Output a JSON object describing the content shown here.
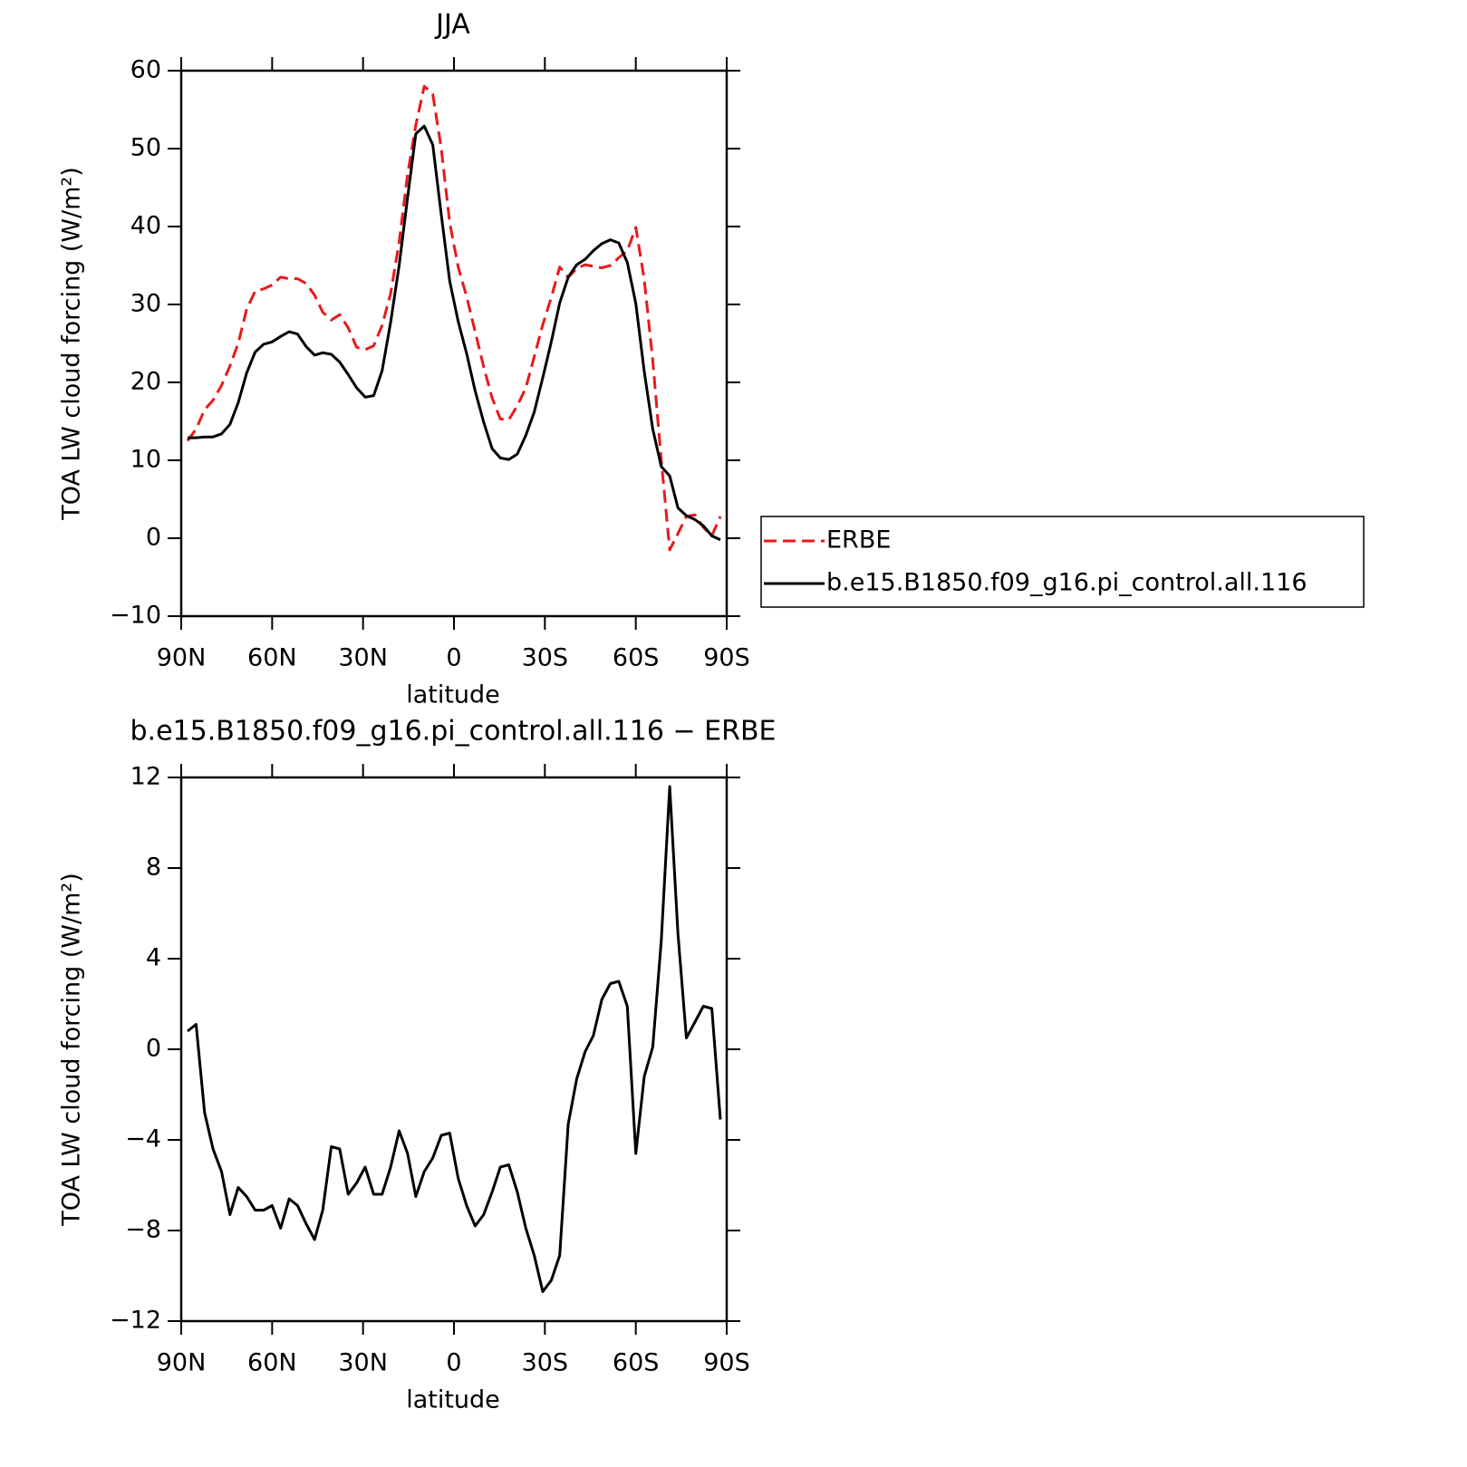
{
  "chart_data": [
    {
      "type": "line",
      "title": "JJA",
      "ylabel": "TOA LW cloud forcing (W/m²)",
      "xlabel": "latitude",
      "xlim": [
        90,
        -90
      ],
      "xticks": [
        {
          "value": 90,
          "label": "90N"
        },
        {
          "value": 60,
          "label": "60N"
        },
        {
          "value": 30,
          "label": "30N"
        },
        0,
        {
          "value": -30,
          "label": "30S"
        },
        {
          "value": -60,
          "label": "60S"
        },
        {
          "value": -90,
          "label": "90S"
        }
      ],
      "ylim": [
        -10,
        60
      ],
      "yticks": [
        {
          "value": -10,
          "label": "−10"
        },
        0,
        10,
        20,
        30,
        40,
        50,
        60
      ],
      "legend": "outside-right",
      "x": [
        87.9,
        85.1,
        82.3,
        79.5,
        76.7,
        73.9,
        71.2,
        68.4,
        65.6,
        62.8,
        60.0,
        57.2,
        54.4,
        51.6,
        48.8,
        46.0,
        43.3,
        40.5,
        37.7,
        34.9,
        32.1,
        29.3,
        26.5,
        23.7,
        20.9,
        18.1,
        15.3,
        12.6,
        9.8,
        7.0,
        4.2,
        1.4,
        -1.4,
        -4.2,
        -7.0,
        -9.8,
        -12.6,
        -15.3,
        -18.1,
        -20.9,
        -23.7,
        -26.5,
        -29.3,
        -32.1,
        -34.9,
        -37.7,
        -40.5,
        -43.3,
        -46.0,
        -48.8,
        -51.6,
        -54.4,
        -57.2,
        -60.0,
        -62.8,
        -65.6,
        -68.4,
        -71.2,
        -73.9,
        -76.7,
        -79.5,
        -82.3,
        -85.1,
        -87.9
      ],
      "series": [
        {
          "name": "ERBE",
          "color": "#e8191c",
          "dashed": true,
          "values": [
            12.5,
            14,
            16.5,
            17.7,
            19.6,
            22.1,
            25,
            29.4,
            31.7,
            32,
            32.5,
            33.5,
            33.3,
            33.3,
            32.7,
            31.2,
            29,
            28,
            28.7,
            27,
            24.5,
            24.2,
            24.7,
            27.3,
            31.4,
            38,
            46.7,
            53,
            58,
            57,
            50,
            40.5,
            34.8,
            31,
            26.5,
            22,
            18,
            15.3,
            15.2,
            17,
            19.3,
            23.3,
            27.4,
            30.9,
            34.8,
            33.5,
            34.6,
            35.1,
            34.9,
            34.7,
            35,
            36,
            36.9,
            39.9,
            33.2,
            22.8,
            10,
            -1.5,
            0.6,
            2.8,
            3,
            1.4,
            0.3,
            2.8
          ]
        },
        {
          "name": "b.e15.B1850.f09_g16.pi_control.all.116",
          "color": "#000000",
          "dashed": false,
          "values": [
            12.9,
            12.9,
            13,
            13,
            13.4,
            14.6,
            17.4,
            21.2,
            23.9,
            24.9,
            25.2,
            25.9,
            26.5,
            26.2,
            24.6,
            23.5,
            23.8,
            23.6,
            22.6,
            21,
            19.3,
            18.1,
            18.3,
            21.5,
            27.7,
            35,
            43.7,
            51.9,
            52.9,
            50.5,
            41.5,
            33,
            27.8,
            23.7,
            18.9,
            14.9,
            11.5,
            10.3,
            10.1,
            10.8,
            13.2,
            16.2,
            20.6,
            25.2,
            30.2,
            33.5,
            35.1,
            35.8,
            36.9,
            37.8,
            38.3,
            37.9,
            35.4,
            30.1,
            21.4,
            14,
            9.2,
            8,
            3.9,
            2.9,
            2.4,
            1.6,
            0.3,
            -0.2
          ]
        }
      ]
    },
    {
      "type": "line",
      "title": "b.e15.B1850.f09_g16.pi_control.all.116 − ERBE",
      "ylabel": "TOA LW cloud forcing (W/m²)",
      "xlabel": "latitude",
      "xlim": [
        90,
        -90
      ],
      "xticks": [
        {
          "value": 90,
          "label": "90N"
        },
        {
          "value": 60,
          "label": "60N"
        },
        {
          "value": 30,
          "label": "30N"
        },
        0,
        {
          "value": -30,
          "label": "30S"
        },
        {
          "value": -60,
          "label": "60S"
        },
        {
          "value": -90,
          "label": "90S"
        }
      ],
      "ylim": [
        -12,
        12
      ],
      "yticks": [
        {
          "value": -12,
          "label": "−12"
        },
        {
          "value": -8,
          "label": "−8"
        },
        {
          "value": -4,
          "label": "−4"
        },
        0,
        4,
        8,
        12
      ],
      "x": [
        87.9,
        85.1,
        82.3,
        79.5,
        76.7,
        73.9,
        71.2,
        68.4,
        65.6,
        62.8,
        60.0,
        57.2,
        54.4,
        51.6,
        48.8,
        46.0,
        43.3,
        40.5,
        37.7,
        34.9,
        32.1,
        29.3,
        26.5,
        23.7,
        20.9,
        18.1,
        15.3,
        12.6,
        9.8,
        7.0,
        4.2,
        1.4,
        -1.4,
        -4.2,
        -7.0,
        -9.8,
        -12.6,
        -15.3,
        -18.1,
        -20.9,
        -23.7,
        -26.5,
        -29.3,
        -32.1,
        -34.9,
        -37.7,
        -40.5,
        -43.3,
        -46.0,
        -48.8,
        -51.6,
        -54.4,
        -57.2,
        -60.0,
        -62.8,
        -65.6,
        -68.4,
        -71.2,
        -73.9,
        -76.7,
        -79.5,
        -82.3,
        -85.1,
        -87.9
      ],
      "series": [
        {
          "color": "#000000",
          "dashed": false,
          "values": [
            0.8,
            1.1,
            -2.8,
            -4.4,
            -5.4,
            -7.3,
            -6.1,
            -6.5,
            -7.1,
            -7.1,
            -6.9,
            -7.9,
            -6.6,
            -6.9,
            -7.7,
            -8.4,
            -7.1,
            -4.3,
            -4.4,
            -6.4,
            -5.9,
            -5.2,
            -6.4,
            -6.4,
            -5.2,
            -3.6,
            -4.6,
            -6.5,
            -5.4,
            -4.8,
            -3.8,
            -3.7,
            -5.7,
            -6.9,
            -7.8,
            -7.3,
            -6.3,
            -5.2,
            -5.1,
            -6.3,
            -7.9,
            -9.1,
            -10.7,
            -10.2,
            -9.1,
            -3.3,
            -1.3,
            -0.1,
            0.6,
            2.2,
            2.9,
            3.0,
            1.9,
            -4.6,
            -1.2,
            0.1,
            4.8,
            11.6,
            5.1,
            0.5,
            1.2,
            1.9,
            1.8,
            -3.1
          ]
        }
      ]
    }
  ]
}
